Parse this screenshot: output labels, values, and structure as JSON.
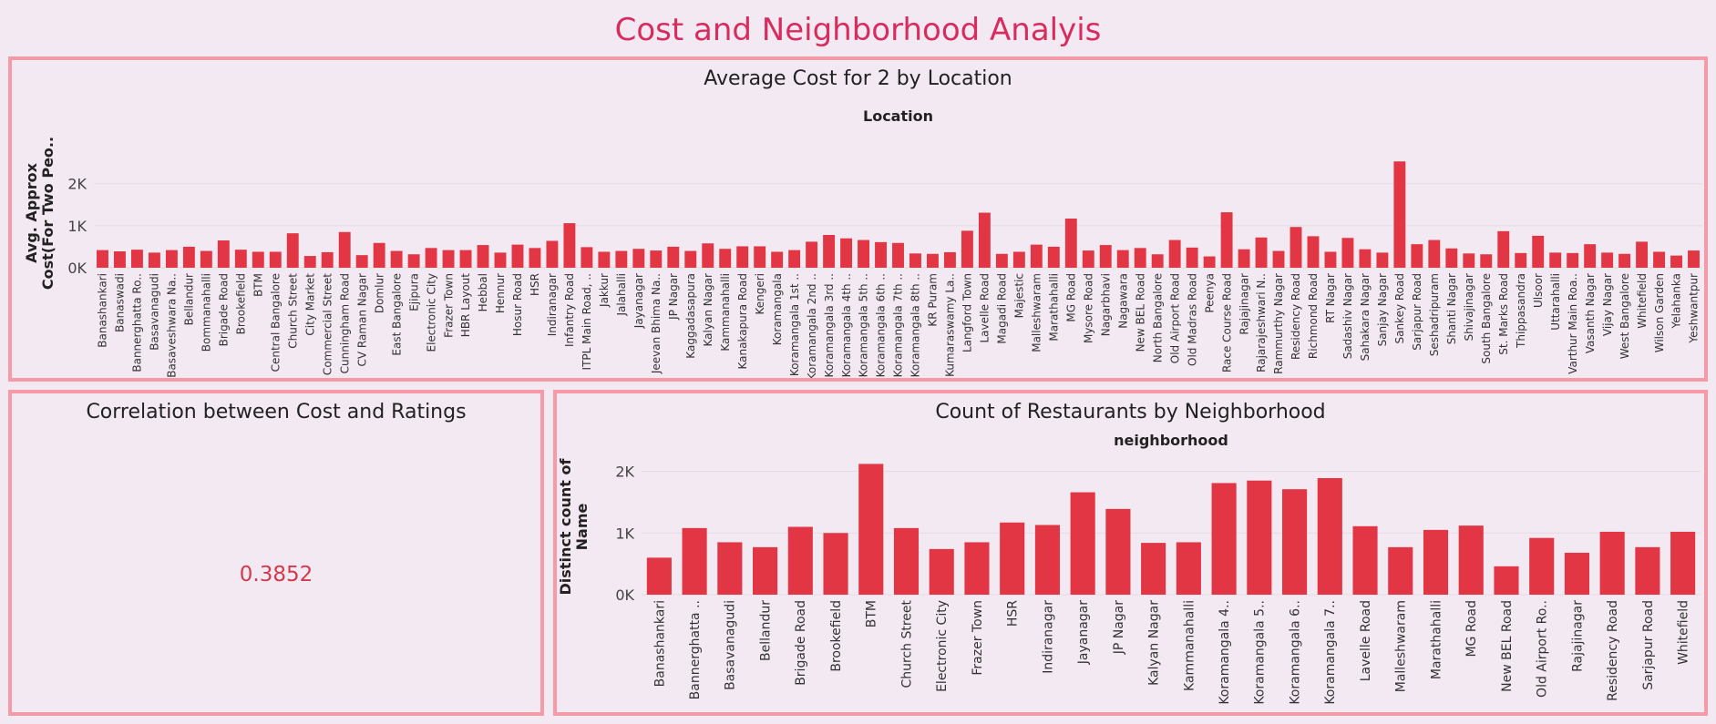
{
  "dashboard_title": "Cost and Neighborhood Analyis",
  "colors": {
    "bar": "#e23645",
    "title": "#d92c5e",
    "border": "#f69aa7",
    "background": "#f3e9f2",
    "value": "#d23a4b"
  },
  "correlation": {
    "title": "Correlation between Cost and Ratings",
    "value": "0.3852"
  },
  "chart_data": [
    {
      "type": "bar",
      "title": "Average Cost for 2 by Location",
      "header": "Location",
      "ylabel": "Avg. Approx Cost(For Two Peo..",
      "ylim": [
        0,
        2600
      ],
      "yticks": [
        0,
        1000,
        2000
      ],
      "ytick_labels": [
        "0K",
        "1K",
        "2K"
      ],
      "grid": true,
      "categories": [
        "Banashankari",
        "Banaswadi",
        "Bannerghatta Ro..",
        "Basavanagudi",
        "Basaveshwara Na..",
        "Bellandur",
        "Bommanahalli",
        "Brigade Road",
        "Brookefield",
        "BTM",
        "Central Bangalore",
        "Church Street",
        "City Market",
        "Commercial Street",
        "Cunningham Road",
        "CV Raman Nagar",
        "Domlur",
        "East Bangalore",
        "Ejipura",
        "Electronic City",
        "Frazer Town",
        "HBR Layout",
        "Hebbal",
        "Hennur",
        "Hosur Road",
        "HSR",
        "Indiranagar",
        "Infantry Road",
        "ITPL Main Road, ..",
        "Jakkur",
        "Jalahalli",
        "Jayanagar",
        "Jeevan Bhima Na..",
        "JP Nagar",
        "Kaggadasapura",
        "Kalyan Nagar",
        "Kammanahalli",
        "Kanakapura Road",
        "Kengeri",
        "Koramangala",
        "Koramangala 1st ..",
        "Koramangala 2nd ..",
        "Koramangala 3rd ..",
        "Koramangala 4th ..",
        "Koramangala 5th ..",
        "Koramangala 6th ..",
        "Koramangala 7th ..",
        "Koramangala 8th ..",
        "KR Puram",
        "Kumaraswamy La..",
        "Langford Town",
        "Lavelle Road",
        "Magadi Road",
        "Majestic",
        "Malleshwaram",
        "Marathahalli",
        "MG Road",
        "Mysore Road",
        "Nagarbhavi",
        "Nagawara",
        "New BEL Road",
        "North Bangalore",
        "Old Airport Road",
        "Old Madras Road",
        "Peenya",
        "Race Course Road",
        "Rajajinagar",
        "Rajarajeshwari N..",
        "Rammurthy Nagar",
        "Residency Road",
        "Richmond Road",
        "RT Nagar",
        "Sadashiv Nagar",
        "Sahakara Nagar",
        "Sanjay Nagar",
        "Sankey Road",
        "Sarjapur Road",
        "Seshadripuram",
        "Shanti Nagar",
        "Shivajinagar",
        "South Bangalore",
        "St. Marks Road",
        "Thippasandra",
        "Ulsoor",
        "Uttarahalli",
        "Varthur Main Roa..",
        "Vasanth Nagar",
        "Vijay Nagar",
        "West Bangalore",
        "Whitefield",
        "Wilson Garden",
        "Yelahanka",
        "Yeshwantpur"
      ],
      "values": [
        420,
        390,
        430,
        360,
        420,
        500,
        400,
        650,
        430,
        380,
        380,
        820,
        280,
        370,
        850,
        300,
        590,
        400,
        320,
        470,
        420,
        420,
        540,
        360,
        550,
        470,
        640,
        1060,
        490,
        380,
        400,
        450,
        410,
        500,
        400,
        580,
        450,
        510,
        510,
        380,
        420,
        620,
        780,
        700,
        660,
        610,
        590,
        340,
        330,
        370,
        880,
        1310,
        330,
        380,
        550,
        500,
        1170,
        410,
        540,
        420,
        470,
        320,
        660,
        480,
        270,
        1320,
        440,
        720,
        400,
        970,
        750,
        380,
        710,
        440,
        360,
        2530,
        560,
        660,
        460,
        340,
        320,
        870,
        350,
        760,
        360,
        350,
        560,
        360,
        330,
        620,
        380,
        290,
        410
      ]
    },
    {
      "type": "bar",
      "title": "Count of Restaurants by Neighborhood",
      "header": "neighborhood",
      "ylabel": "Distinct count of Name",
      "ylim": [
        0,
        2200
      ],
      "yticks": [
        0,
        1000,
        2000
      ],
      "ytick_labels": [
        "0K",
        "1K",
        "2K"
      ],
      "grid": true,
      "categories": [
        "Banashankari",
        "Bannerghatta ..",
        "Basavanagudi",
        "Bellandur",
        "Brigade Road",
        "Brookefield",
        "BTM",
        "Church Street",
        "Electronic City",
        "Frazer Town",
        "HSR",
        "Indiranagar",
        "Jayanagar",
        "JP Nagar",
        "Kalyan Nagar",
        "Kammanahalli",
        "Koramangala 4..",
        "Koramangala 5..",
        "Koramangala 6..",
        "Koramangala 7..",
        "Lavelle Road",
        "Malleshwaram",
        "Marathahalli",
        "MG Road",
        "New BEL Road",
        "Old Airport Ro..",
        "Rajajinagar",
        "Residency Road",
        "Sarjapur Road",
        "Whitefield"
      ],
      "values": [
        600,
        1080,
        850,
        770,
        1100,
        1000,
        2120,
        1080,
        740,
        850,
        1170,
        1130,
        1660,
        1390,
        840,
        850,
        1810,
        1850,
        1710,
        1890,
        1110,
        770,
        1050,
        1120,
        460,
        920,
        680,
        1020,
        770,
        1020
      ]
    }
  ]
}
